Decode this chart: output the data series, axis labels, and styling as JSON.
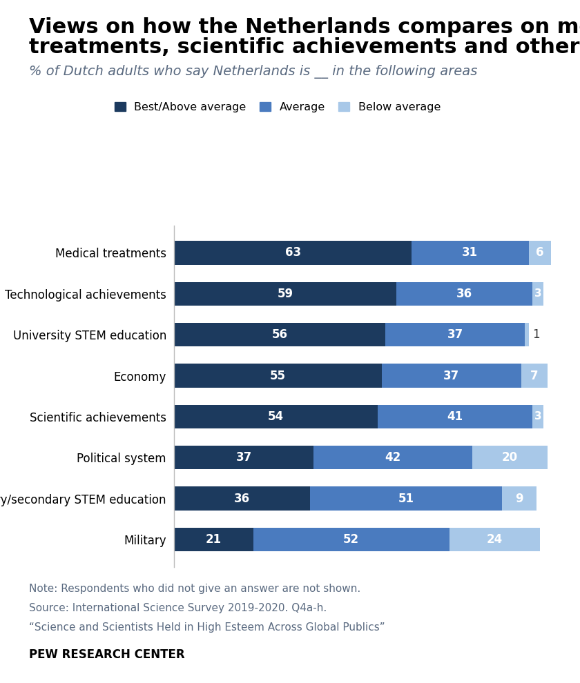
{
  "title_line1": "Views on how the Netherlands compares on medical",
  "title_line2": "treatments, scientific achievements and other areas",
  "subtitle": "% of Dutch adults who say Netherlands is __ in the following areas",
  "categories": [
    "Medical treatments",
    "Technological achievements",
    "University STEM education",
    "Economy",
    "Scientific achievements",
    "Political system",
    "Primary/secondary STEM education",
    "Military"
  ],
  "best_above": [
    63,
    59,
    56,
    55,
    54,
    37,
    36,
    21
  ],
  "average": [
    31,
    36,
    37,
    37,
    41,
    42,
    51,
    52
  ],
  "below_average": [
    6,
    3,
    1,
    7,
    3,
    20,
    9,
    24
  ],
  "colors": {
    "best_above": "#1c3a5e",
    "average": "#4a7bbf",
    "below_average": "#a8c8e8"
  },
  "legend_labels": [
    "Best/Above average",
    "Average",
    "Below average"
  ],
  "note_lines": [
    "Note: Respondents who did not give an answer are not shown.",
    "Source: International Science Survey 2019-2020. Q4a-h.",
    "“Science and Scientists Held in High Esteem Across Global Publics”"
  ],
  "footer": "PEW RESEARCH CENTER",
  "title_fontsize": 22,
  "subtitle_fontsize": 14,
  "label_fontsize": 12,
  "bar_label_fontsize": 12,
  "note_fontsize": 11,
  "footer_fontsize": 12
}
